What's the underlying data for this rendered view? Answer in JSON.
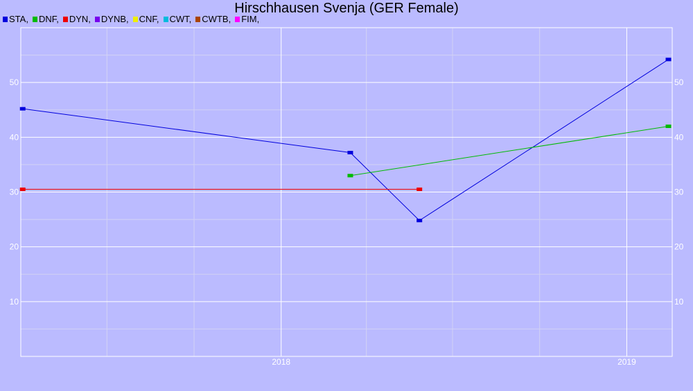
{
  "chart_data": {
    "type": "line",
    "title": "Hirschhausen Svenja (GER Female)",
    "legend_position": "top-left",
    "legend": [
      {
        "label": "STA,",
        "color": "#0000dd"
      },
      {
        "label": "DNF,",
        "color": "#00bb00"
      },
      {
        "label": "DYN,",
        "color": "#ee0000"
      },
      {
        "label": "DYNB,",
        "color": "#7700ee"
      },
      {
        "label": "CNF,",
        "color": "#eeee00"
      },
      {
        "label": "CWT,",
        "color": "#00bbdd"
      },
      {
        "label": "CWTB,",
        "color": "#aa4400"
      },
      {
        "label": "FIM,",
        "color": "#ff00ff"
      }
    ],
    "xlim": [
      "2017-04-01",
      "2019-02-18"
    ],
    "ylim": [
      0,
      60
    ],
    "x_ticks": [
      {
        "label": "2018",
        "date": "2018-01-01"
      },
      {
        "label": "2019",
        "date": "2019-01-01"
      }
    ],
    "y_ticks": [
      10,
      20,
      30,
      40,
      50
    ],
    "grid": true,
    "series": [
      {
        "legend_index": 0,
        "color": "#0000dd",
        "points": [
          {
            "x": "2017-04-03",
            "y": 45.2
          },
          {
            "x": "2018-03-15",
            "y": 37.2
          },
          {
            "x": "2018-05-27",
            "y": 24.8
          },
          {
            "x": "2019-02-14",
            "y": 54.2
          }
        ]
      },
      {
        "legend_index": 1,
        "color": "#00bb00",
        "points": [
          {
            "x": "2018-03-15",
            "y": 33.0
          },
          {
            "x": "2019-02-14",
            "y": 42.0
          }
        ]
      },
      {
        "legend_index": 2,
        "color": "#ee0000",
        "points": [
          {
            "x": "2017-04-03",
            "y": 30.5
          },
          {
            "x": "2018-05-27",
            "y": 30.5
          }
        ]
      }
    ]
  }
}
